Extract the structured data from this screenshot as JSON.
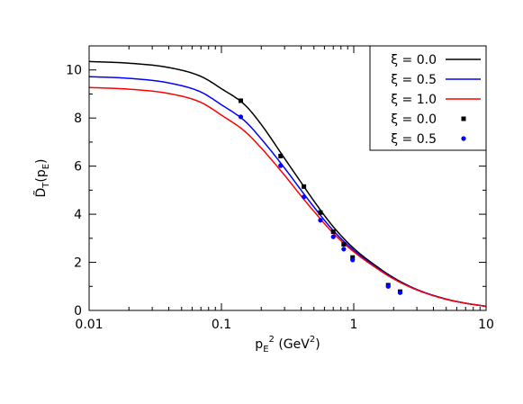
{
  "chart_data": {
    "type": "line",
    "xlabel": "p_E^2 (GeV^2)",
    "xlabel_parts": {
      "main": "p",
      "sub": "E",
      "sup": "2",
      "unit_open": " (GeV",
      "unit_sup": "2",
      "unit_close": ")"
    },
    "ylabel": "D̃_T(p_E)",
    "ylabel_parts": {
      "main": "D̃",
      "sub": "T",
      "arg_open": "(p",
      "arg_sub": "E",
      "arg_close": ")"
    },
    "xscale": "log",
    "xlim": [
      0.01,
      10
    ],
    "ylim": [
      0,
      11
    ],
    "x_ticks": [
      {
        "value": 0.01,
        "label": "0.01"
      },
      {
        "value": 0.1,
        "label": "0.1"
      },
      {
        "value": 1,
        "label": "1"
      },
      {
        "value": 10,
        "label": "10"
      }
    ],
    "y_ticks": [
      {
        "value": 0,
        "label": "0"
      },
      {
        "value": 2,
        "label": "2"
      },
      {
        "value": 4,
        "label": "4"
      },
      {
        "value": 6,
        "label": "6"
      },
      {
        "value": 8,
        "label": "8"
      },
      {
        "value": 10,
        "label": "10"
      }
    ],
    "grid": false,
    "legend_position": "top-right",
    "series": [
      {
        "name": "ξ = 0.0",
        "kind": "line",
        "color": "#000000",
        "x": [
          0.01,
          0.02,
          0.04,
          0.07,
          0.1,
          0.15,
          0.2,
          0.3,
          0.4,
          0.5,
          0.7,
          1.0,
          1.5,
          2.0,
          3.0,
          5.0,
          7.0,
          10.0
        ],
        "y": [
          10.35,
          10.28,
          10.1,
          9.73,
          9.22,
          8.55,
          7.73,
          6.32,
          5.32,
          4.55,
          3.48,
          2.58,
          1.82,
          1.36,
          0.87,
          0.47,
          0.3,
          0.17
        ]
      },
      {
        "name": "ξ = 0.5",
        "kind": "line",
        "color": "#0000ff",
        "x": [
          0.01,
          0.02,
          0.04,
          0.07,
          0.1,
          0.15,
          0.2,
          0.3,
          0.4,
          0.5,
          0.7,
          1.0,
          1.5,
          2.0,
          3.0,
          5.0,
          7.0,
          10.0
        ],
        "y": [
          9.72,
          9.65,
          9.46,
          9.08,
          8.55,
          7.88,
          7.13,
          5.92,
          5.0,
          4.3,
          3.32,
          2.5,
          1.77,
          1.33,
          0.86,
          0.47,
          0.3,
          0.17
        ]
      },
      {
        "name": "ξ = 1.0",
        "kind": "line",
        "color": "#ff0000",
        "x": [
          0.01,
          0.02,
          0.04,
          0.07,
          0.1,
          0.15,
          0.2,
          0.3,
          0.4,
          0.5,
          0.7,
          1.0,
          1.5,
          2.0,
          3.0,
          5.0,
          7.0,
          10.0
        ],
        "y": [
          9.27,
          9.2,
          9.02,
          8.65,
          8.12,
          7.45,
          6.75,
          5.62,
          4.76,
          4.12,
          3.21,
          2.44,
          1.74,
          1.31,
          0.85,
          0.46,
          0.3,
          0.17
        ]
      },
      {
        "name": "ξ = 0.0",
        "kind": "points",
        "marker": "square",
        "color": "#000000",
        "x": [
          0.14,
          0.28,
          0.42,
          0.56,
          0.7,
          0.84,
          0.98,
          1.82,
          2.24
        ],
        "y": [
          8.72,
          6.42,
          5.15,
          4.07,
          3.27,
          2.75,
          2.2,
          1.05,
          0.78
        ]
      },
      {
        "name": "ξ = 0.5",
        "kind": "points",
        "marker": "circle",
        "color": "#0000ff",
        "x": [
          0.14,
          0.28,
          0.42,
          0.56,
          0.7,
          0.84,
          0.98,
          1.82,
          2.24
        ],
        "y": [
          8.05,
          6.02,
          4.72,
          3.75,
          3.06,
          2.55,
          2.1,
          1.0,
          0.74
        ]
      }
    ]
  }
}
